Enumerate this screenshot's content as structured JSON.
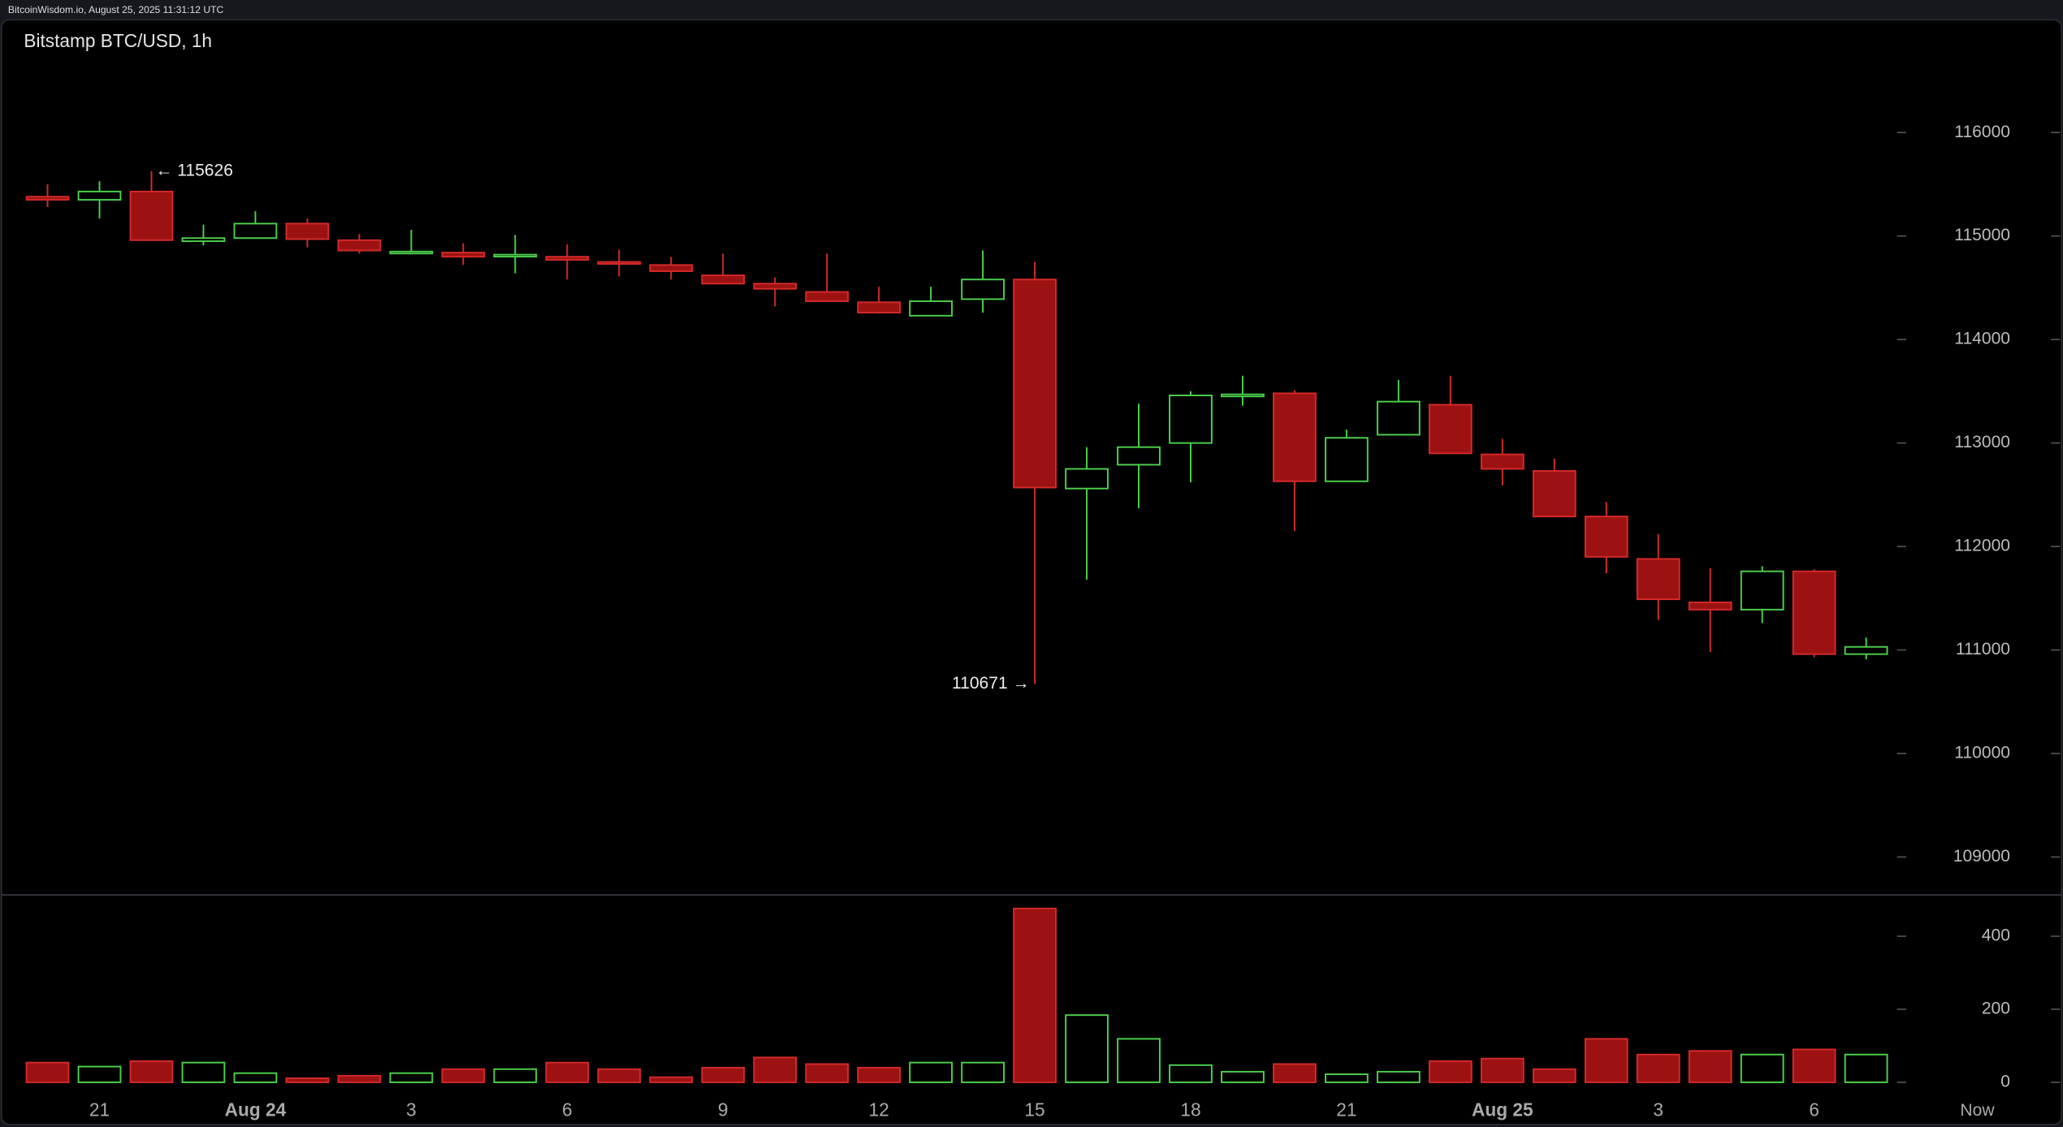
{
  "chart_data": {
    "type": "candlestick",
    "header": "BitcoinWisdom.io, August 25, 2025 11:31:12 UTC",
    "title": "Bitstamp BTC/USD, 1h",
    "categories": [
      null,
      "21",
      null,
      null,
      "Aug 24",
      null,
      null,
      "3",
      null,
      null,
      "6",
      null,
      null,
      "9",
      null,
      null,
      "12",
      null,
      null,
      "15",
      null,
      null,
      "18",
      null,
      null,
      "21",
      null,
      null,
      "Aug 25",
      null,
      null,
      "3",
      null,
      null,
      "6",
      null
    ],
    "now_label": "Now",
    "open": [
      115380,
      115350,
      115430,
      114950,
      114980,
      115120,
      114960,
      114840,
      114840,
      114810,
      114800,
      114750,
      114720,
      114620,
      114540,
      114460,
      114360,
      114230,
      114390,
      114580,
      112560,
      112790,
      113000,
      113450,
      113480,
      112630,
      113080,
      113370,
      112890,
      112730,
      112290,
      111880,
      111460,
      111390,
      111760,
      110960
    ],
    "high": [
      115500,
      115530,
      115626,
      115110,
      115240,
      115170,
      115020,
      115060,
      114930,
      115010,
      114920,
      114870,
      114800,
      114830,
      114600,
      114830,
      114510,
      114510,
      114860,
      114750,
      112960,
      113380,
      113500,
      113650,
      113510,
      113130,
      113610,
      113650,
      113040,
      112850,
      112430,
      112120,
      111790,
      111810,
      111780,
      111120
    ],
    "low": [
      115280,
      115170,
      114960,
      114910,
      114980,
      114890,
      114830,
      114830,
      114720,
      114640,
      114580,
      114610,
      114580,
      114540,
      114320,
      114370,
      114250,
      114230,
      114260,
      110671,
      111680,
      112370,
      112620,
      113360,
      112150,
      112630,
      113080,
      112900,
      112590,
      112290,
      111740,
      111290,
      110980,
      111260,
      110930,
      110910
    ],
    "close": [
      115350,
      115430,
      114960,
      114980,
      115120,
      114970,
      114860,
      114850,
      114800,
      114820,
      114770,
      114730,
      114660,
      114540,
      114490,
      114370,
      114260,
      114370,
      114580,
      112570,
      112750,
      112960,
      113460,
      113470,
      112630,
      113050,
      113400,
      112900,
      112750,
      112290,
      111900,
      111490,
      111390,
      111760,
      110960,
      111030
    ],
    "volume": [
      54,
      43,
      58,
      54,
      25,
      11,
      18,
      25,
      36,
      36,
      54,
      36,
      14,
      40,
      68,
      50,
      40,
      54,
      54,
      476,
      184,
      119,
      47,
      29,
      50,
      22,
      29,
      58,
      65,
      36,
      119,
      76,
      86,
      76,
      90,
      76
    ],
    "up_color": "#4cd04c",
    "down_color": "#9c1212",
    "down_edge_color": "#d42a2a",
    "ylim": [
      108640,
      117090
    ],
    "yticks": [
      109000,
      110000,
      111000,
      112000,
      113000,
      114000,
      115000,
      116000
    ],
    "volume_ylim": [
      -36,
      515
    ],
    "volume_yticks": [
      0,
      200,
      400
    ],
    "annotations": [
      {
        "value": 115626,
        "label": "← 115626"
      },
      {
        "value": 110671,
        "label": "110671 →"
      }
    ]
  }
}
